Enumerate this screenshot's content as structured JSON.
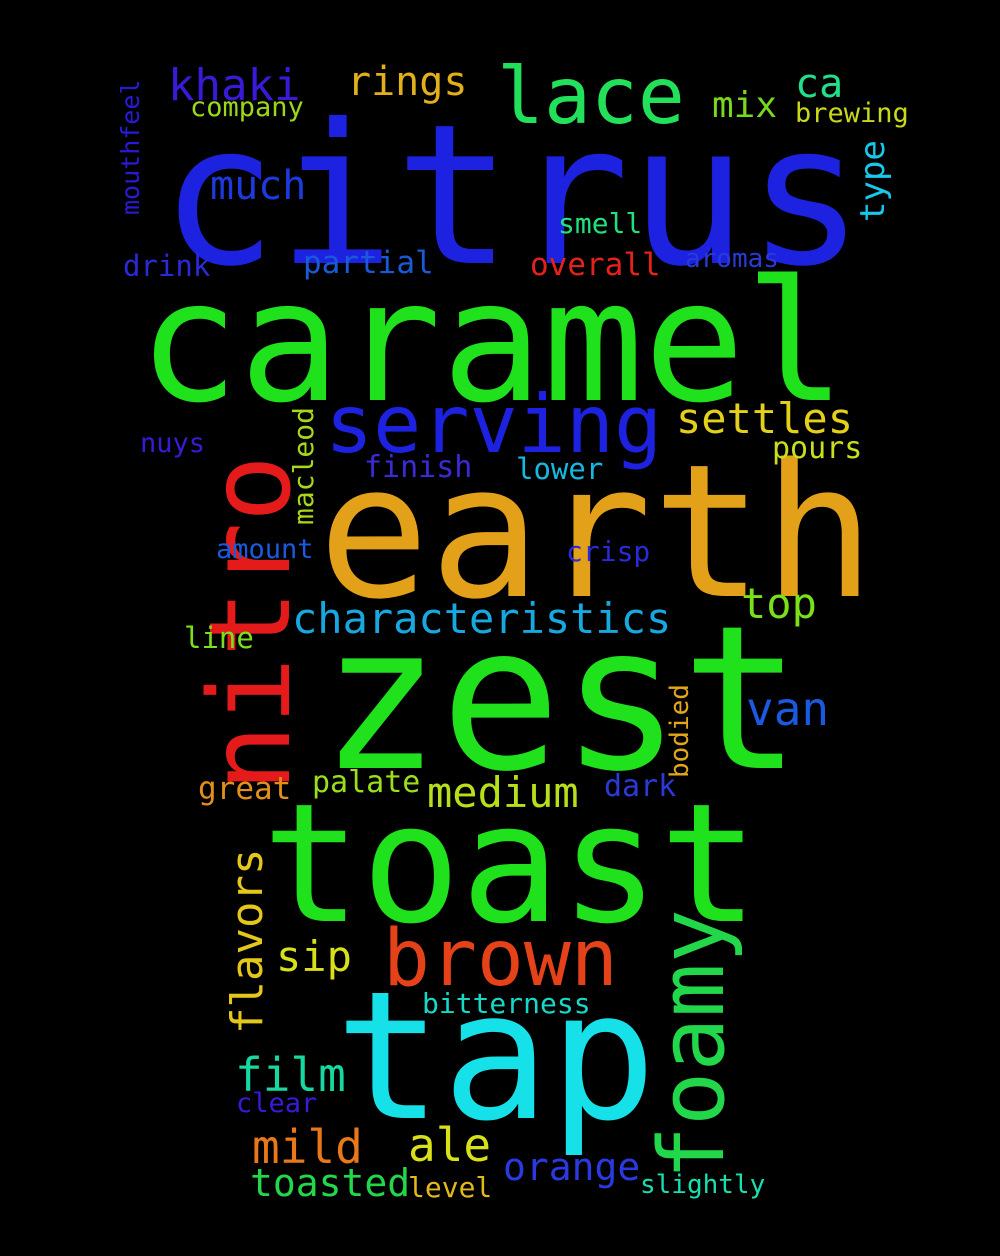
{
  "words": [
    {
      "text": "citrus",
      "color": "#1c22e0"
    },
    {
      "text": "caramel",
      "color": "#1fe11c"
    },
    {
      "text": "earth",
      "color": "#e3a11a"
    },
    {
      "text": "zest",
      "color": "#1fe11c"
    },
    {
      "text": "toast",
      "color": "#1fe11c"
    },
    {
      "text": "tap",
      "color": "#17e1e8"
    },
    {
      "text": "nitro",
      "color": "#e51a1a"
    },
    {
      "text": "brown",
      "color": "#e6421a"
    },
    {
      "text": "foamy",
      "color": "#22d84a"
    },
    {
      "text": "serving",
      "color": "#1c22e0"
    },
    {
      "text": "lace",
      "color": "#22e05a"
    },
    {
      "text": "khaki",
      "color": "#3a1ad8"
    },
    {
      "text": "rings",
      "color": "#e3b01a"
    },
    {
      "text": "ca",
      "color": "#22e08a"
    },
    {
      "text": "mix",
      "color": "#7ad81a"
    },
    {
      "text": "company",
      "color": "#9ad81a"
    },
    {
      "text": "brewing",
      "color": "#c8d81a"
    },
    {
      "text": "much",
      "color": "#1c3ae0"
    },
    {
      "text": "mouthfeel",
      "color": "#2a1ad8"
    },
    {
      "text": "type",
      "color": "#17c8e8"
    },
    {
      "text": "smell",
      "color": "#22e07a"
    },
    {
      "text": "drink",
      "color": "#2a2ad8"
    },
    {
      "text": "partial",
      "color": "#1a5ad8"
    },
    {
      "text": "overall",
      "color": "#e5221a"
    },
    {
      "text": "aromas",
      "color": "#2a3ad8"
    },
    {
      "text": "settles",
      "color": "#e3d01a"
    },
    {
      "text": "pours",
      "color": "#c8e01a"
    },
    {
      "text": "nuys",
      "color": "#3a1ad8"
    },
    {
      "text": "macleod",
      "color": "#a8d81a"
    },
    {
      "text": "finish",
      "color": "#3a2ad8"
    },
    {
      "text": "lower",
      "color": "#17b8e0"
    },
    {
      "text": "amount",
      "color": "#1a5ae0"
    },
    {
      "text": "crisp",
      "color": "#2a2ad8"
    },
    {
      "text": "characteristics",
      "color": "#17a8e0"
    },
    {
      "text": "top",
      "color": "#7ae01a"
    },
    {
      "text": "line",
      "color": "#7ae01a"
    },
    {
      "text": "van",
      "color": "#1a5ae0"
    },
    {
      "text": "bodied",
      "color": "#e3a81a"
    },
    {
      "text": "great",
      "color": "#e3901a"
    },
    {
      "text": "palate",
      "color": "#9ae01a"
    },
    {
      "text": "medium",
      "color": "#b8e01a"
    },
    {
      "text": "dark",
      "color": "#2a3ad8"
    },
    {
      "text": "flavors",
      "color": "#e3c81a"
    },
    {
      "text": "sip",
      "color": "#d8e01a"
    },
    {
      "text": "bitterness",
      "color": "#17d8c8"
    },
    {
      "text": "film",
      "color": "#17d8a0"
    },
    {
      "text": "clear",
      "color": "#3a1ad8"
    },
    {
      "text": "mild",
      "color": "#e8781a"
    },
    {
      "text": "ale",
      "color": "#d8e01a"
    },
    {
      "text": "orange",
      "color": "#2a3ae0"
    },
    {
      "text": "toasted",
      "color": "#22d84a"
    },
    {
      "text": "level",
      "color": "#e3b81a"
    },
    {
      "text": "slightly",
      "color": "#17e0b0"
    }
  ]
}
